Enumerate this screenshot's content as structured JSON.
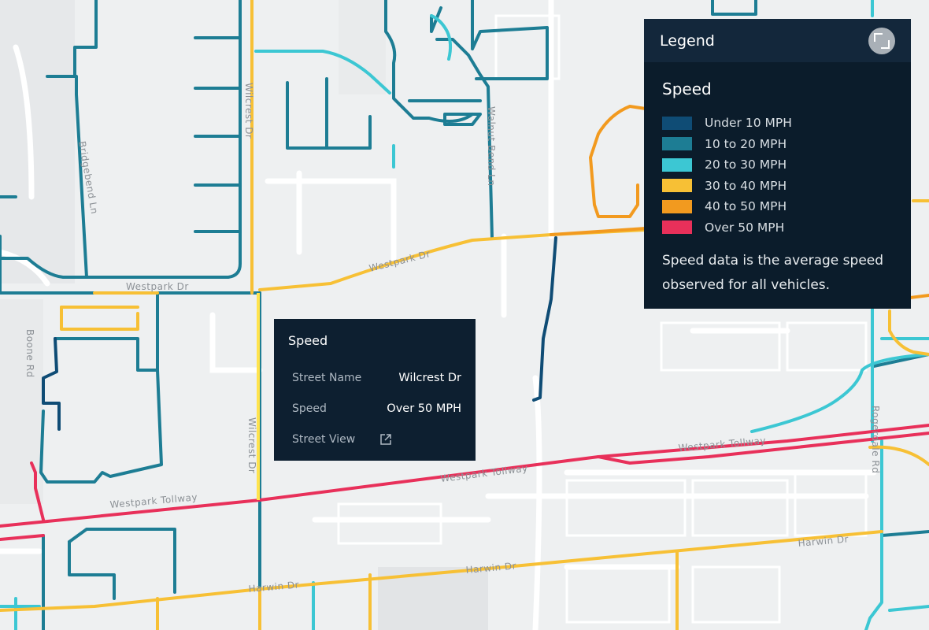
{
  "streets": {
    "westpark_dr_1": "Westpark Dr",
    "westpark_dr_2": "Westpark Dr",
    "wilcrest_dr_1": "Wilcrest Dr",
    "wilcrest_dr_2": "Wilcrest Dr",
    "boone_rd": "Boone Rd",
    "westpark_tollway_1": "Westpark Tollway",
    "westpark_tollway_2": "Westpark Tollway",
    "westpark_tollway_3": "Westpark Tollway",
    "harwin_dr_1": "Harwin Dr",
    "harwin_dr_2": "Harwin Dr",
    "harwin_dr_3": "Harwin Dr",
    "rogerdale_rd": "Rogerdale Rd",
    "walnut_bend_ln": "Walnut Bend Ln",
    "briarbend_dr": "Bridgebend Ln"
  },
  "legend": {
    "title": "Legend",
    "section_title": "Speed",
    "items": [
      {
        "label": "Under 10 MPH",
        "color": "#0f4c75"
      },
      {
        "label": "10 to 20 MPH",
        "color": "#1d7d94"
      },
      {
        "label": "20 to 30 MPH",
        "color": "#3cc7d3"
      },
      {
        "label": "30 to 40 MPH",
        "color": "#f7c035"
      },
      {
        "label": "40 to 50 MPH",
        "color": "#f29a1f"
      },
      {
        "label": "Over 50 MPH",
        "color": "#e8305a"
      }
    ],
    "note": "Speed data is the average speed observed for all vehicles."
  },
  "tooltip": {
    "title": "Speed",
    "street_name_label": "Street Name",
    "street_name_value": "Wilcrest Dr",
    "speed_label": "Speed",
    "speed_value": "Over 50 MPH",
    "street_view_label": "Street View"
  }
}
